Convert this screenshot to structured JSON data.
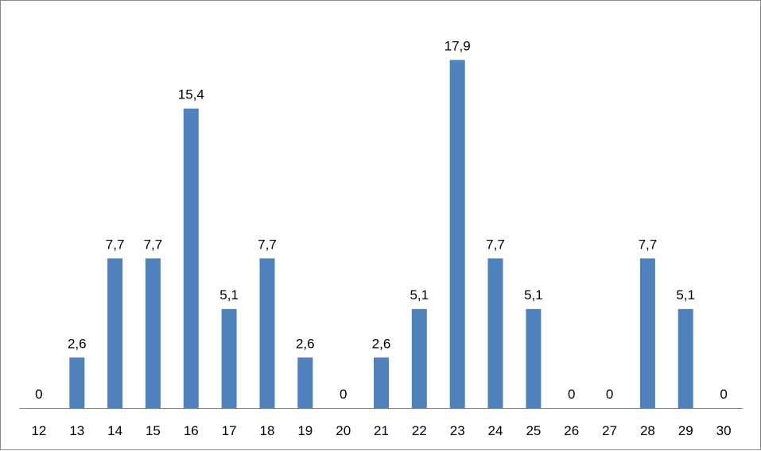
{
  "chart_data": {
    "type": "bar",
    "title": "",
    "xlabel": "",
    "ylabel": "",
    "categories": [
      "12",
      "13",
      "14",
      "15",
      "16",
      "17",
      "18",
      "19",
      "20",
      "21",
      "22",
      "23",
      "24",
      "25",
      "26",
      "27",
      "28",
      "29",
      "30"
    ],
    "series": [
      {
        "values": [
          0,
          2.6,
          7.7,
          7.7,
          15.4,
          5.1,
          7.7,
          2.6,
          0,
          2.6,
          5.1,
          17.9,
          7.7,
          5.1,
          0,
          0,
          7.7,
          5.1,
          0
        ],
        "data_labels": [
          "0",
          "2,6",
          "7,7",
          "7,7",
          "15,4",
          "5,1",
          "7,7",
          "2,6",
          "0",
          "2,6",
          "5,1",
          "17,9",
          "7,7",
          "5,1",
          "0",
          "0",
          "7,7",
          "5,1",
          "0"
        ]
      }
    ],
    "ylim": [
      0,
      20
    ],
    "grid": false,
    "legend": "none",
    "bar_color": "#4F81BD",
    "axis_color": "#868686"
  }
}
